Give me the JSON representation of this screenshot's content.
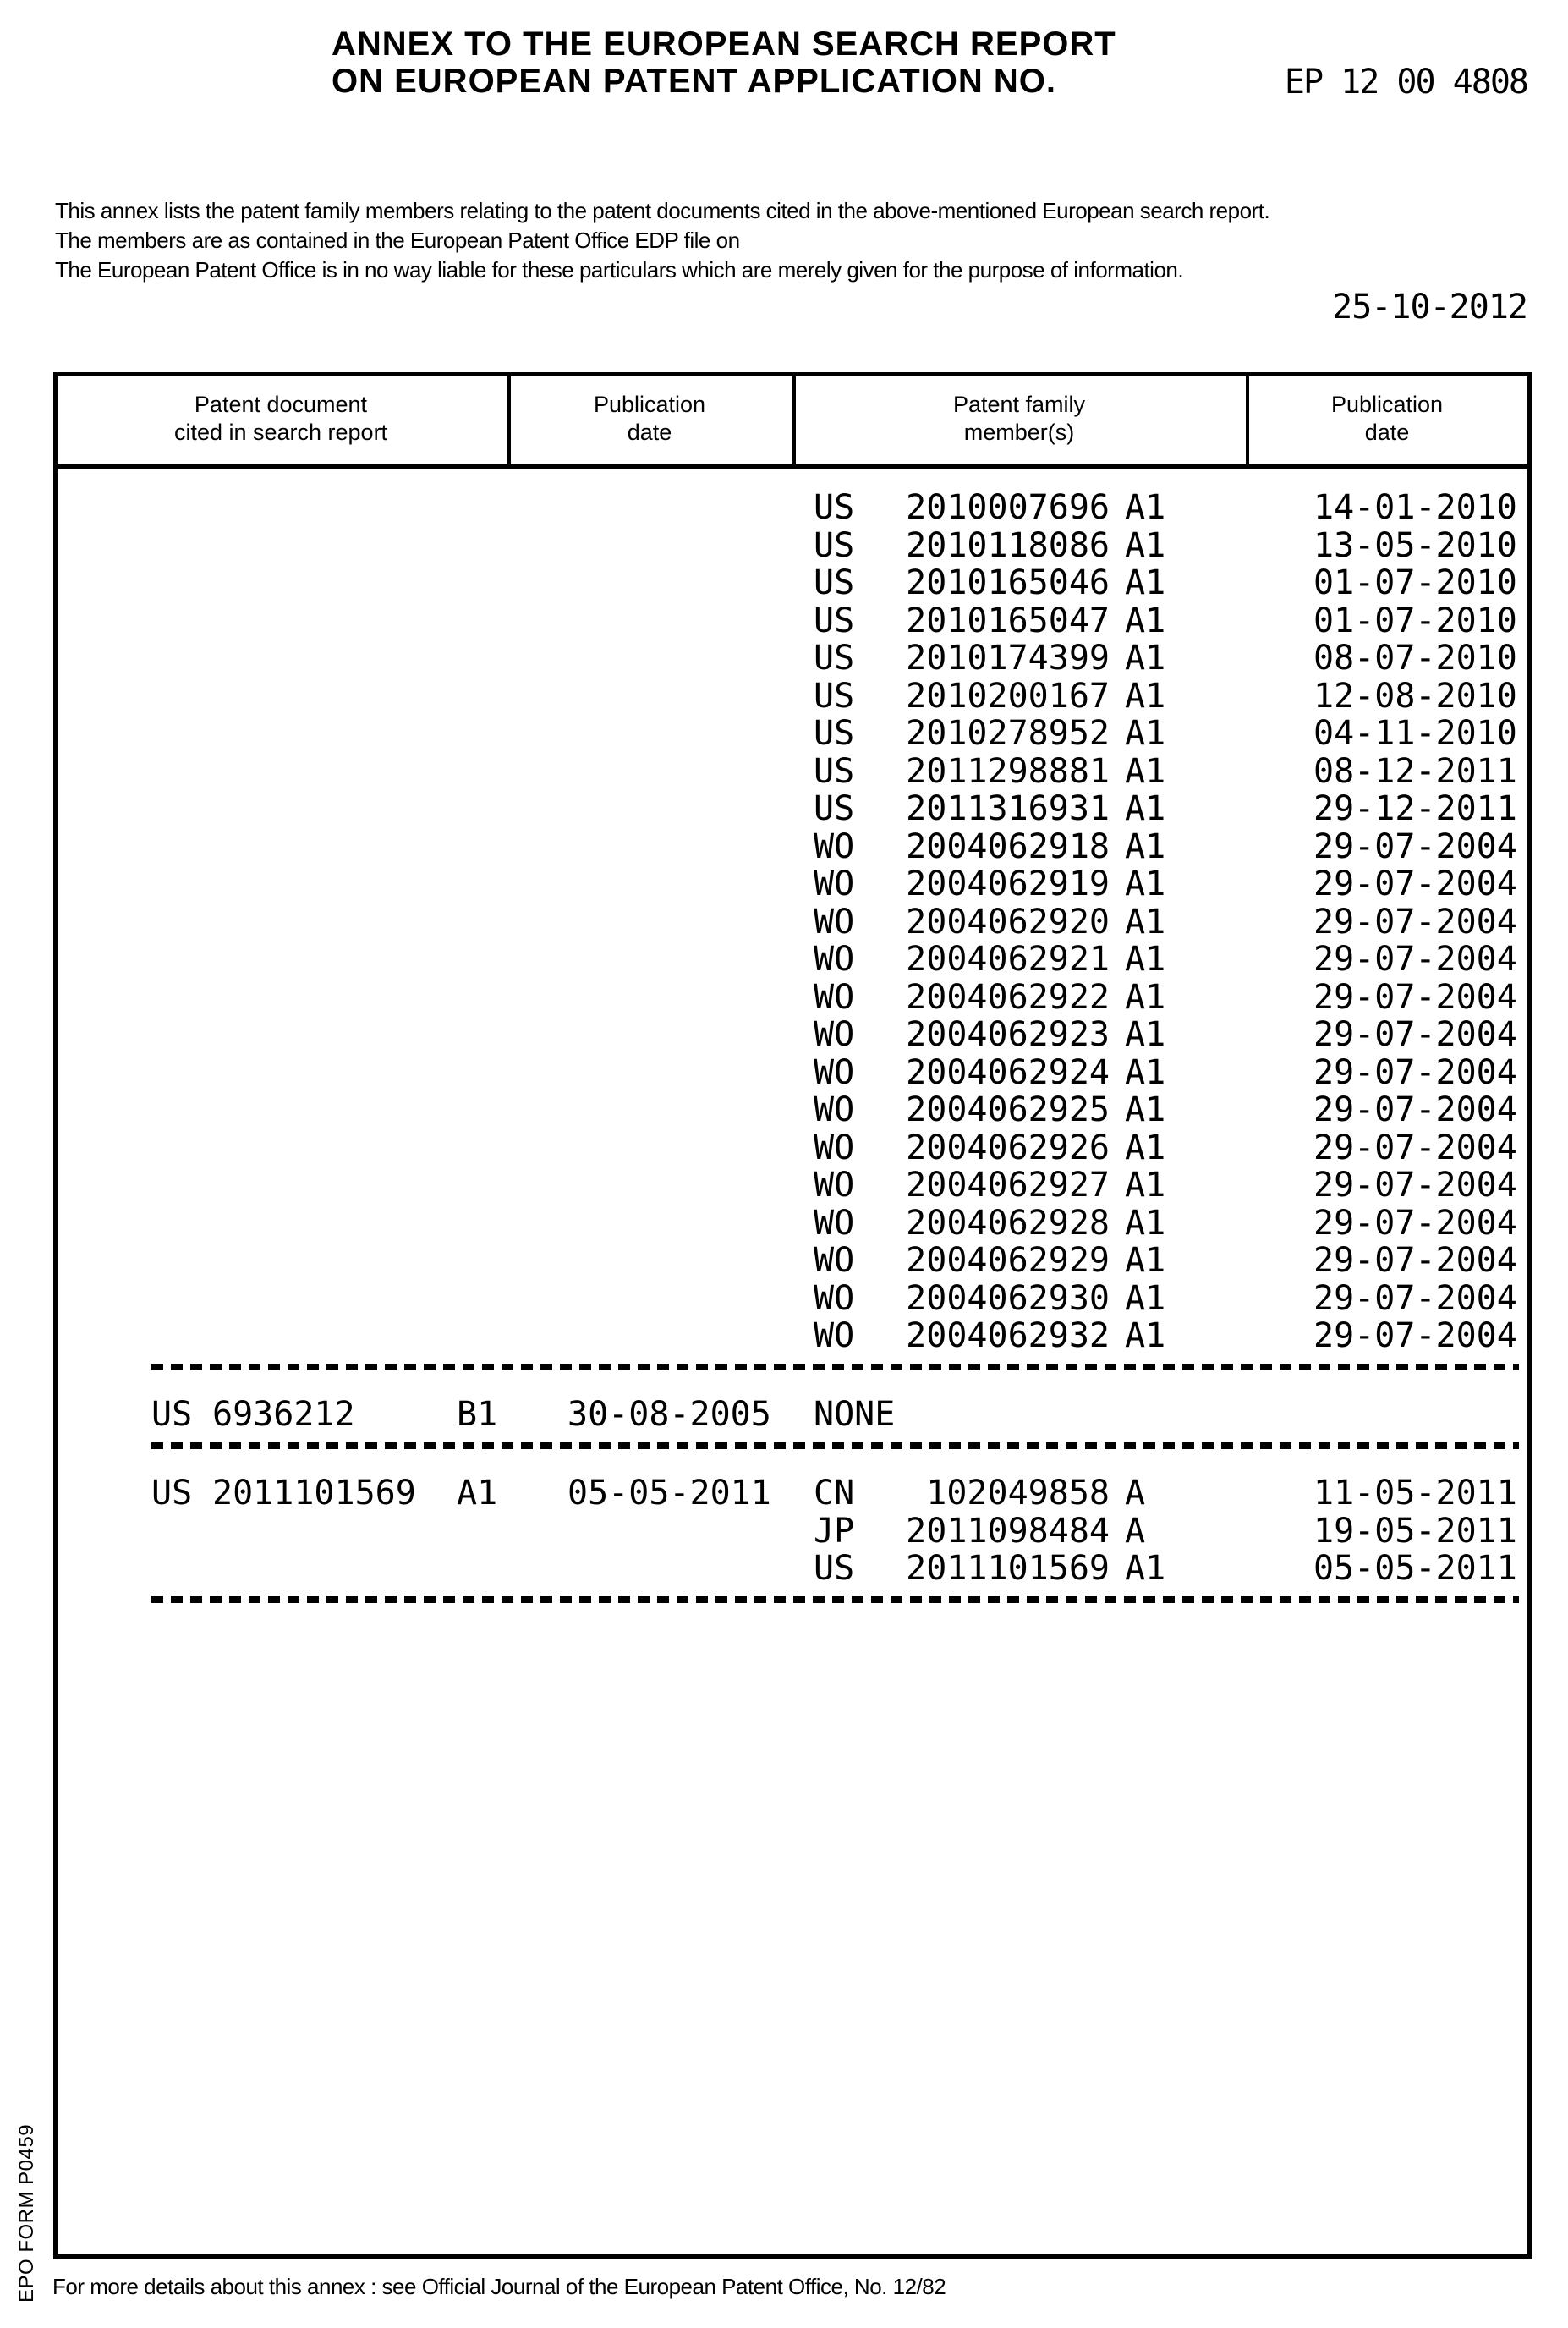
{
  "page": {
    "title_line1": "ANNEX TO THE EUROPEAN SEARCH REPORT",
    "title_line2": "ON EUROPEAN PATENT APPLICATION NO.",
    "application_no": "EP 12 00 4808",
    "intro_lines": [
      "This annex lists the patent family members relating to the patent documents cited in  the above-mentioned European search report.",
      "The members are as contained in the European Patent Office EDP file on",
      "The European Patent Office is in no way liable for these particulars which are merely given for the purpose of information."
    ],
    "report_date": "25-10-2012",
    "footer_note": "For more details about this annex : see Official Journal of the European Patent Office, No. 12/82",
    "form_id": "EPO FORM P0459"
  },
  "table": {
    "headers": {
      "col1": [
        "Patent document",
        "cited in search report"
      ],
      "col2": [
        "Publication",
        "date"
      ],
      "col3": [
        "Patent family",
        "member(s)"
      ],
      "col4": [
        "Publication",
        "date"
      ]
    },
    "groups": [
      {
        "cited": null,
        "none_label": "",
        "members": [
          {
            "cc": "US",
            "num": "2010007696",
            "kind": "A1",
            "date": "14-01-2010"
          },
          {
            "cc": "US",
            "num": "2010118086",
            "kind": "A1",
            "date": "13-05-2010"
          },
          {
            "cc": "US",
            "num": "2010165046",
            "kind": "A1",
            "date": "01-07-2010"
          },
          {
            "cc": "US",
            "num": "2010165047",
            "kind": "A1",
            "date": "01-07-2010"
          },
          {
            "cc": "US",
            "num": "2010174399",
            "kind": "A1",
            "date": "08-07-2010"
          },
          {
            "cc": "US",
            "num": "2010200167",
            "kind": "A1",
            "date": "12-08-2010"
          },
          {
            "cc": "US",
            "num": "2010278952",
            "kind": "A1",
            "date": "04-11-2010"
          },
          {
            "cc": "US",
            "num": "2011298881",
            "kind": "A1",
            "date": "08-12-2011"
          },
          {
            "cc": "US",
            "num": "2011316931",
            "kind": "A1",
            "date": "29-12-2011"
          },
          {
            "cc": "WO",
            "num": "2004062918",
            "kind": "A1",
            "date": "29-07-2004"
          },
          {
            "cc": "WO",
            "num": "2004062919",
            "kind": "A1",
            "date": "29-07-2004"
          },
          {
            "cc": "WO",
            "num": "2004062920",
            "kind": "A1",
            "date": "29-07-2004"
          },
          {
            "cc": "WO",
            "num": "2004062921",
            "kind": "A1",
            "date": "29-07-2004"
          },
          {
            "cc": "WO",
            "num": "2004062922",
            "kind": "A1",
            "date": "29-07-2004"
          },
          {
            "cc": "WO",
            "num": "2004062923",
            "kind": "A1",
            "date": "29-07-2004"
          },
          {
            "cc": "WO",
            "num": "2004062924",
            "kind": "A1",
            "date": "29-07-2004"
          },
          {
            "cc": "WO",
            "num": "2004062925",
            "kind": "A1",
            "date": "29-07-2004"
          },
          {
            "cc": "WO",
            "num": "2004062926",
            "kind": "A1",
            "date": "29-07-2004"
          },
          {
            "cc": "WO",
            "num": "2004062927",
            "kind": "A1",
            "date": "29-07-2004"
          },
          {
            "cc": "WO",
            "num": "2004062928",
            "kind": "A1",
            "date": "29-07-2004"
          },
          {
            "cc": "WO",
            "num": "2004062929",
            "kind": "A1",
            "date": "29-07-2004"
          },
          {
            "cc": "WO",
            "num": "2004062930",
            "kind": "A1",
            "date": "29-07-2004"
          },
          {
            "cc": "WO",
            "num": "2004062932",
            "kind": "A1",
            "date": "29-07-2004"
          }
        ]
      },
      {
        "cited": {
          "cc": "US",
          "num": "6936212",
          "kind": "B1",
          "date": "30-08-2005"
        },
        "none_label": "NONE",
        "members": []
      },
      {
        "cited": {
          "cc": "US",
          "num": "2011101569",
          "kind": "A1",
          "date": "05-05-2011"
        },
        "none_label": "",
        "members": [
          {
            "cc": "CN",
            "num": "102049858",
            "kind": "A",
            "date": "11-05-2011"
          },
          {
            "cc": "JP",
            "num": "2011098484",
            "kind": "A",
            "date": "19-05-2011"
          },
          {
            "cc": "US",
            "num": "2011101569",
            "kind": "A1",
            "date": "05-05-2011"
          }
        ]
      }
    ]
  }
}
